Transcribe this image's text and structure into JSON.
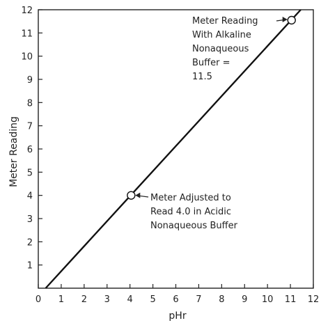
{
  "chart_data": {
    "type": "line",
    "xlabel": "pHr",
    "ylabel": "Meter Reading",
    "xlim": [
      0,
      12
    ],
    "ylim": [
      0,
      12
    ],
    "xticks": [
      0,
      1,
      2,
      3,
      4,
      5,
      6,
      7,
      8,
      9,
      10,
      11,
      12
    ],
    "yticks": [
      1,
      2,
      3,
      4,
      5,
      6,
      7,
      8,
      9,
      10,
      11,
      12
    ],
    "grid": false,
    "series": [
      {
        "x": [
          0.32,
          11.45
        ],
        "y": [
          0,
          12
        ]
      }
    ],
    "points": [
      {
        "x": 4.05,
        "y": 4.0
      },
      {
        "x": 11.05,
        "y": 11.55
      }
    ],
    "annotations": [
      {
        "lines": [
          "Meter Reading",
          "With Alkaline",
          "Nonaqueous",
          "Buffer =",
          "11.5"
        ]
      },
      {
        "lines": [
          "Meter Adjusted to",
          "Read 4.0 in Acidic",
          "Nonaqueous Buffer"
        ]
      }
    ]
  }
}
